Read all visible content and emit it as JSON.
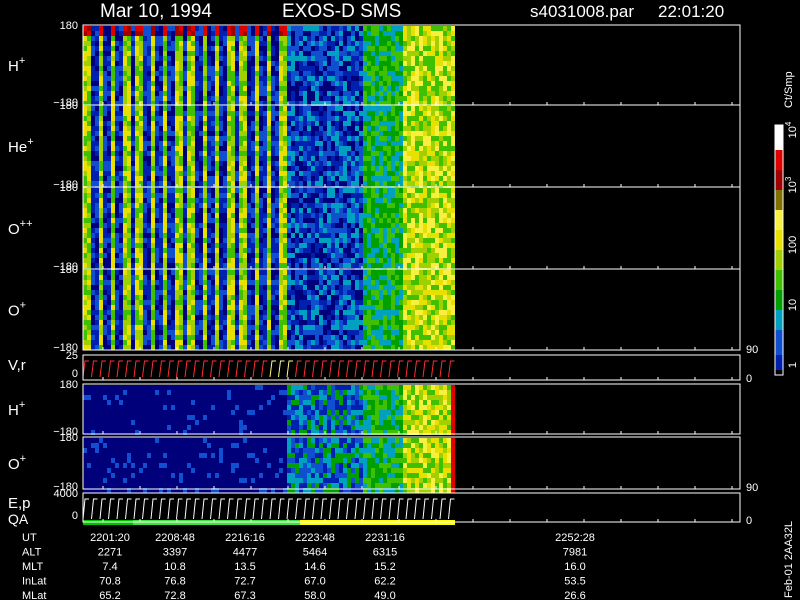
{
  "header": {
    "date": "Mar 10, 1994",
    "instrument": "EXOS-D SMS",
    "file": "s4031008.par",
    "time": "22:01:20"
  },
  "panels": [
    {
      "name": "H",
      "charge": "+",
      "left_ticks": [
        "180",
        "−180"
      ]
    },
    {
      "name": "He",
      "charge": "+",
      "left_ticks": [
        "180",
        "−180"
      ]
    },
    {
      "name": "O",
      "charge": "++",
      "left_ticks": [
        "180",
        "−180"
      ]
    },
    {
      "name": "O",
      "charge": "+",
      "left_ticks": [
        "180",
        "−180"
      ]
    },
    {
      "name": "V,r",
      "charge": "",
      "left_ticks": [
        "25",
        "0"
      ],
      "right_ticks": [
        "90",
        "0"
      ]
    },
    {
      "name": "H",
      "charge": "+",
      "left_ticks": [
        "180",
        "−180"
      ]
    },
    {
      "name": "O",
      "charge": "+",
      "left_ticks": [
        "180",
        "−180"
      ]
    },
    {
      "name": "E,p",
      "charge": "",
      "sublabel": "QA",
      "left_ticks": [
        "4000",
        "0"
      ],
      "right_ticks": [
        "90",
        "0"
      ]
    }
  ],
  "colorbar": {
    "label": "Ct/Smp",
    "ticks": [
      {
        "base": "10",
        "exp": "4"
      },
      {
        "base": "10",
        "exp": "3"
      },
      {
        "base": "100",
        "exp": ""
      },
      {
        "base": "10",
        "exp": ""
      },
      {
        "base": "1",
        "exp": ""
      }
    ]
  },
  "table": {
    "rows": [
      {
        "label": "UT",
        "values": [
          "2201:20",
          "2208:48",
          "2216:16",
          "2223:48",
          "2231:16",
          "2252:28"
        ]
      },
      {
        "label": "ALT",
        "values": [
          "2271",
          "3397",
          "4477",
          "5464",
          "6315",
          "7981"
        ]
      },
      {
        "label": "MLT",
        "values": [
          "7.4",
          "10.8",
          "13.5",
          "14.6",
          "15.2",
          "16.0"
        ]
      },
      {
        "label": "InLat",
        "values": [
          "70.8",
          "76.8",
          "72.7",
          "67.0",
          "62.2",
          "53.5"
        ]
      },
      {
        "label": "MLat",
        "values": [
          "65.2",
          "72.8",
          "67.3",
          "58.0",
          "49.0",
          "26.6"
        ]
      }
    ]
  },
  "footer": "Feb-01 2AA32L"
}
